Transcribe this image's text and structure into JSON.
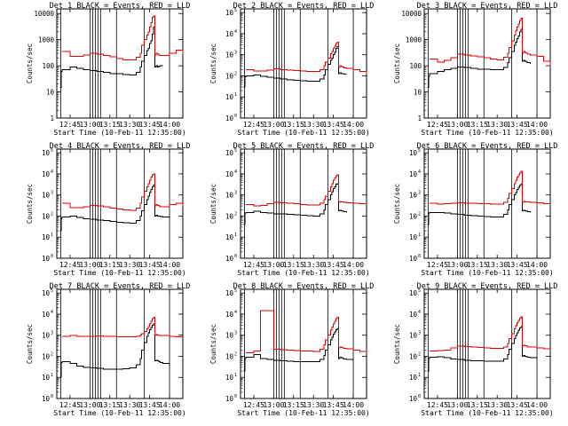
{
  "colors": {
    "events": "#000000",
    "lld": "#e00000",
    "background": "#ffffff"
  },
  "panel_titles": [
    "Det 1",
    "Det 2",
    "Det 3",
    "Det 4",
    "Det 5",
    "Det 6",
    "Det 7",
    "Det 8",
    "Det 9"
  ],
  "title_suffix": "BLACK = Events, RED = LLD",
  "y_label": "Counts/sec",
  "x_label": "Start Time (10-Feb-11 12:35:00)",
  "x_ticks": [
    "12:45",
    "13:00",
    "13:15",
    "13:30",
    "13:45",
    "14:00"
  ],
  "x_tick_minutes": [
    10,
    25,
    40,
    55,
    70,
    85
  ],
  "y_ticks_plain": [
    "1",
    "10",
    "100",
    "1000",
    "10000"
  ],
  "y_ticks_exp": [
    "0",
    "1",
    "2",
    "3",
    "4",
    "5"
  ],
  "y_tick_base": "10",
  "chart_data": [
    {
      "type": "line",
      "title": "Det 1",
      "ylim": [
        1,
        15000
      ],
      "yscale": "log",
      "x_minutes": [
        0,
        2,
        2.5,
        3.5,
        4,
        10,
        15,
        20,
        25,
        30,
        35,
        40,
        45,
        50,
        55,
        60,
        63,
        64,
        66,
        68,
        69,
        70,
        71,
        72,
        73,
        74,
        75,
        76,
        77,
        78,
        80,
        85,
        90,
        95
      ],
      "series": [
        {
          "name": "BLACK = Events",
          "values": [
            null,
            null,
            15,
            60,
            70,
            90,
            80,
            70,
            65,
            60,
            55,
            50,
            50,
            47,
            45,
            55,
            90,
            150,
            250,
            380,
            460,
            700,
            900,
            1600,
            3000,
            90,
            100,
            90,
            95,
            100,
            100,
            null,
            null,
            null
          ]
        },
        {
          "name": "RED = LLD",
          "values": [
            null,
            null,
            null,
            null,
            350,
            230,
            230,
            260,
            300,
            280,
            250,
            220,
            190,
            170,
            165,
            210,
            300,
            600,
            1000,
            1500,
            2000,
            3000,
            4500,
            7000,
            8000,
            260,
            300,
            280,
            260,
            250,
            250,
            300,
            400,
            280
          ]
        }
      ]
    },
    {
      "type": "line",
      "title": "Det 2",
      "ylim": [
        1,
        150000
      ],
      "yscale": "log",
      "x_minutes": [
        0,
        2,
        2.5,
        3.5,
        4,
        10,
        15,
        20,
        25,
        30,
        35,
        40,
        45,
        50,
        55,
        60,
        63,
        64,
        66,
        68,
        69,
        70,
        71,
        72,
        73,
        74,
        75,
        76,
        77,
        78,
        80,
        85,
        90,
        95
      ],
      "series": [
        {
          "name": "BLACK = Events",
          "values": [
            null,
            null,
            30,
            90,
            100,
            110,
            95,
            85,
            80,
            70,
            65,
            60,
            58,
            55,
            55,
            70,
            110,
            200,
            350,
            550,
            700,
            1000,
            1300,
            2000,
            2500,
            130,
            140,
            130,
            125,
            120,
            120,
            null,
            null,
            null
          ]
        },
        {
          "name": "RED = LLD",
          "values": [
            null,
            null,
            null,
            null,
            200,
            170,
            170,
            190,
            220,
            200,
            190,
            180,
            170,
            160,
            160,
            200,
            300,
            450,
            700,
            1100,
            1400,
            2000,
            2600,
            3500,
            4000,
            250,
            300,
            280,
            260,
            240,
            230,
            200,
            160,
            130
          ]
        }
      ]
    },
    {
      "type": "line",
      "title": "Det 3",
      "ylim": [
        1,
        15000
      ],
      "yscale": "log",
      "x_minutes": [
        0,
        2,
        2.5,
        3.5,
        4,
        10,
        15,
        20,
        25,
        30,
        35,
        40,
        45,
        50,
        55,
        60,
        63,
        64,
        66,
        68,
        69,
        70,
        71,
        72,
        73,
        74,
        75,
        76,
        77,
        78,
        80,
        85,
        90,
        95
      ],
      "series": [
        {
          "name": "BLACK = Events",
          "values": [
            null,
            null,
            15,
            40,
            50,
            60,
            70,
            80,
            90,
            85,
            80,
            75,
            75,
            70,
            70,
            85,
            130,
            200,
            350,
            600,
            800,
            1100,
            1400,
            2000,
            2500,
            150,
            160,
            150,
            140,
            130,
            120,
            null,
            null,
            null
          ]
        },
        {
          "name": "RED = LLD",
          "values": [
            null,
            null,
            null,
            null,
            180,
            140,
            160,
            200,
            280,
            260,
            240,
            220,
            200,
            180,
            170,
            210,
            300,
            500,
            900,
            1500,
            2200,
            3000,
            4000,
            5500,
            6500,
            300,
            350,
            320,
            300,
            280,
            260,
            230,
            150,
            90
          ]
        }
      ]
    },
    {
      "type": "line",
      "title": "Det 4",
      "ylim": [
        1,
        150000
      ],
      "yscale": "log",
      "x_minutes": [
        0,
        2,
        2.5,
        3.5,
        4,
        10,
        15,
        20,
        25,
        30,
        35,
        40,
        45,
        50,
        55,
        60,
        63,
        64,
        66,
        68,
        69,
        70,
        71,
        72,
        73,
        74,
        75,
        76,
        77,
        78,
        80,
        85,
        90,
        95
      ],
      "series": [
        {
          "name": "BLACK = Events",
          "values": [
            null,
            null,
            20,
            80,
            90,
            100,
            85,
            75,
            70,
            65,
            60,
            55,
            50,
            48,
            45,
            60,
            100,
            180,
            350,
            600,
            900,
            1300,
            1800,
            2500,
            3000,
            100,
            110,
            100,
            100,
            95,
            90,
            80,
            null,
            null
          ]
        },
        {
          "name": "RED = LLD",
          "values": [
            null,
            null,
            null,
            null,
            400,
            250,
            250,
            280,
            320,
            300,
            270,
            240,
            220,
            200,
            190,
            240,
            400,
            800,
            1500,
            2500,
            3500,
            5000,
            7000,
            9000,
            10000,
            300,
            350,
            320,
            300,
            280,
            280,
            350,
            400,
            300
          ]
        }
      ]
    },
    {
      "type": "line",
      "title": "Det 5",
      "ylim": [
        1,
        150000
      ],
      "yscale": "log",
      "x_minutes": [
        0,
        2,
        2.5,
        3.5,
        4,
        10,
        15,
        20,
        25,
        30,
        35,
        40,
        45,
        50,
        55,
        60,
        63,
        64,
        66,
        68,
        69,
        70,
        71,
        72,
        73,
        74,
        75,
        76,
        77,
        78,
        80,
        85,
        90,
        95
      ],
      "series": [
        {
          "name": "BLACK = Events",
          "values": [
            null,
            null,
            40,
            140,
            150,
            170,
            150,
            140,
            130,
            125,
            120,
            115,
            110,
            105,
            100,
            130,
            200,
            350,
            600,
            1000,
            1400,
            2000,
            2500,
            3200,
            3500,
            180,
            190,
            180,
            170,
            160,
            150,
            null,
            null,
            null
          ]
        },
        {
          "name": "RED = LLD",
          "values": [
            null,
            null,
            null,
            null,
            350,
            300,
            320,
            380,
            450,
            420,
            400,
            380,
            360,
            340,
            330,
            400,
            600,
            900,
            1500,
            2500,
            3500,
            5000,
            6500,
            8000,
            9000,
            450,
            500,
            480,
            460,
            440,
            420,
            400,
            380,
            360
          ]
        }
      ]
    },
    {
      "type": "line",
      "title": "Det 6",
      "ylim": [
        1,
        150000
      ],
      "yscale": "log",
      "x_minutes": [
        0,
        2,
        2.5,
        3.5,
        4,
        10,
        15,
        20,
        25,
        30,
        35,
        40,
        45,
        50,
        55,
        60,
        63,
        64,
        66,
        68,
        69,
        70,
        71,
        72,
        73,
        74,
        75,
        76,
        77,
        78,
        80,
        85,
        90,
        95
      ],
      "series": [
        {
          "name": "BLACK = Events",
          "values": [
            null,
            null,
            40,
            140,
            150,
            150,
            140,
            130,
            120,
            110,
            105,
            100,
            95,
            90,
            90,
            120,
            200,
            350,
            600,
            1000,
            1300,
            1800,
            2300,
            2800,
            3200,
            180,
            190,
            180,
            170,
            160,
            150,
            null,
            null,
            null
          ]
        },
        {
          "name": "RED = LLD",
          "values": [
            null,
            null,
            null,
            null,
            400,
            370,
            380,
            400,
            420,
            410,
            400,
            390,
            380,
            370,
            370,
            450,
            700,
            1200,
            2000,
            3500,
            5000,
            7000,
            9000,
            11000,
            13000,
            450,
            500,
            480,
            470,
            460,
            450,
            420,
            380,
            350
          ]
        }
      ]
    },
    {
      "type": "line",
      "title": "Det 7",
      "ylim": [
        1,
        150000
      ],
      "yscale": "log",
      "x_minutes": [
        0,
        2,
        2.5,
        3.5,
        4,
        10,
        15,
        20,
        25,
        30,
        35,
        40,
        45,
        50,
        55,
        60,
        63,
        64,
        66,
        68,
        69,
        70,
        71,
        72,
        73,
        74,
        75,
        76,
        77,
        78,
        80,
        85,
        90,
        95
      ],
      "series": [
        {
          "name": "BLACK = Events",
          "values": [
            null,
            null,
            10,
            50,
            55,
            45,
            35,
            30,
            28,
            27,
            25,
            25,
            25,
            26,
            28,
            40,
            80,
            200,
            450,
            900,
            1300,
            1800,
            2300,
            3000,
            3500,
            60,
            65,
            60,
            55,
            50,
            45,
            35,
            null,
            null
          ]
        },
        {
          "name": "RED = LLD",
          "values": [
            null,
            null,
            null,
            null,
            900,
            950,
            900,
            880,
            900,
            920,
            900,
            880,
            860,
            850,
            860,
            900,
            1000,
            1200,
            1500,
            2000,
            2600,
            3500,
            4500,
            6000,
            7000,
            1000,
            1050,
            1000,
            980,
            960,
            950,
            900,
            850,
            800
          ]
        }
      ]
    },
    {
      "type": "line",
      "title": "Det 8",
      "ylim": [
        1,
        150000
      ],
      "yscale": "log",
      "x_minutes": [
        0,
        2,
        2.5,
        3.5,
        4,
        10,
        15,
        20,
        25,
        30,
        35,
        40,
        45,
        50,
        55,
        60,
        63,
        64,
        66,
        68,
        69,
        70,
        71,
        72,
        73,
        74,
        75,
        76,
        77,
        78,
        80,
        85,
        90,
        95
      ],
      "series": [
        {
          "name": "BLACK = Events",
          "values": [
            null,
            null,
            20,
            80,
            90,
            120,
            80,
            70,
            65,
            60,
            58,
            55,
            55,
            55,
            55,
            70,
            110,
            200,
            350,
            600,
            800,
            1100,
            1400,
            1800,
            2000,
            80,
            90,
            85,
            80,
            75,
            70,
            60,
            null,
            null
          ]
        },
        {
          "name": "RED = LLD",
          "values": [
            null,
            null,
            null,
            null,
            150,
            180,
            15000,
            15000,
            220,
            210,
            200,
            190,
            180,
            175,
            170,
            220,
            350,
            600,
            1000,
            1700,
            2500,
            3500,
            4500,
            6000,
            7000,
            250,
            280,
            260,
            250,
            240,
            230,
            200,
            170,
            140
          ]
        }
      ]
    },
    {
      "type": "line",
      "title": "Det 9",
      "ylim": [
        1,
        150000
      ],
      "yscale": "log",
      "x_minutes": [
        0,
        2,
        2.5,
        3.5,
        4,
        10,
        15,
        20,
        25,
        30,
        35,
        40,
        45,
        50,
        55,
        60,
        63,
        64,
        66,
        68,
        69,
        70,
        71,
        72,
        73,
        74,
        75,
        76,
        77,
        78,
        80,
        85,
        90,
        95
      ],
      "series": [
        {
          "name": "BLACK = Events",
          "values": [
            null,
            null,
            20,
            80,
            90,
            95,
            85,
            75,
            70,
            65,
            62,
            60,
            58,
            58,
            58,
            75,
            120,
            220,
            400,
            700,
            950,
            1300,
            1700,
            2200,
            2600,
            100,
            110,
            100,
            95,
            90,
            85,
            70,
            null,
            null
          ]
        },
        {
          "name": "RED = LLD",
          "values": [
            null,
            null,
            null,
            null,
            180,
            190,
            200,
            250,
            300,
            290,
            280,
            260,
            250,
            240,
            240,
            280,
            400,
            700,
            1200,
            2000,
            2800,
            4000,
            5000,
            6500,
            7500,
            300,
            330,
            320,
            300,
            280,
            270,
            250,
            230,
            200
          ]
        }
      ]
    }
  ]
}
